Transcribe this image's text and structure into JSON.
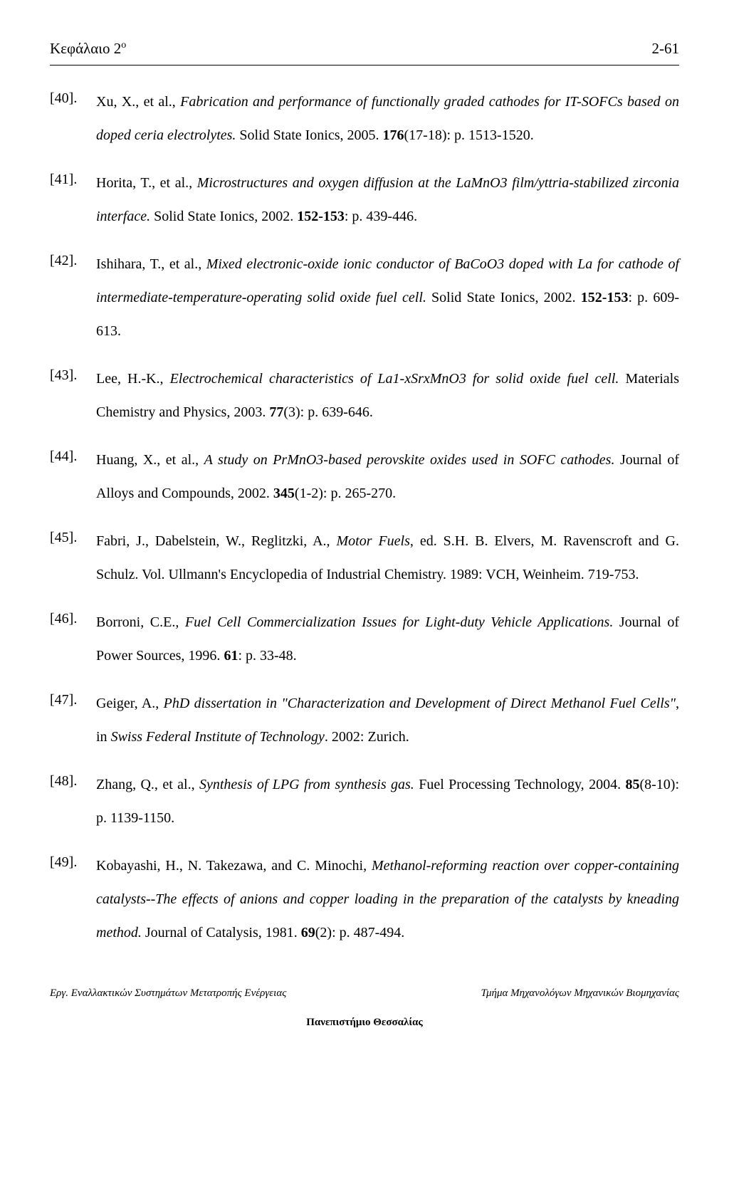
{
  "header": {
    "chapter_label_prefix": "Κεφάλαιο 2",
    "chapter_label_sup": "ο",
    "page_number": "2-61"
  },
  "references": [
    {
      "num": "[40].",
      "parts": [
        {
          "text": "Xu, X., et al., ",
          "style": ""
        },
        {
          "text": "Fabrication and performance of functionally graded cathodes for IT-SOFCs based on doped ceria electrolytes.",
          "style": "italic"
        },
        {
          "text": " Solid State Ionics, 2005. ",
          "style": ""
        },
        {
          "text": "176",
          "style": "bold"
        },
        {
          "text": "(17-18): p. 1513-1520.",
          "style": ""
        }
      ]
    },
    {
      "num": "[41].",
      "parts": [
        {
          "text": "Horita, T., et al., ",
          "style": ""
        },
        {
          "text": "Microstructures and oxygen diffusion at the LaMnO3 film/yttria-stabilized zirconia interface.",
          "style": "italic"
        },
        {
          "text": " Solid State Ionics, 2002. ",
          "style": ""
        },
        {
          "text": "152-153",
          "style": "bold"
        },
        {
          "text": ": p. 439-446.",
          "style": ""
        }
      ]
    },
    {
      "num": "[42].",
      "parts": [
        {
          "text": "Ishihara, T., et al., ",
          "style": ""
        },
        {
          "text": "Mixed electronic-oxide ionic conductor of BaCoO3 doped with La for cathode of intermediate-temperature-operating solid oxide fuel cell.",
          "style": "italic"
        },
        {
          "text": " Solid State Ionics, 2002. ",
          "style": ""
        },
        {
          "text": "152-153",
          "style": "bold"
        },
        {
          "text": ": p. 609-613.",
          "style": ""
        }
      ]
    },
    {
      "num": "[43].",
      "parts": [
        {
          "text": "Lee, H.-K., ",
          "style": ""
        },
        {
          "text": "Electrochemical characteristics of La1-xSrxMnO3 for solid oxide fuel cell.",
          "style": "italic"
        },
        {
          "text": " Materials Chemistry and Physics, 2003. ",
          "style": ""
        },
        {
          "text": "77",
          "style": "bold"
        },
        {
          "text": "(3): p. 639-646.",
          "style": ""
        }
      ]
    },
    {
      "num": "[44].",
      "parts": [
        {
          "text": "Huang, X., et al., ",
          "style": ""
        },
        {
          "text": "A study on PrMnO3-based perovskite oxides used in SOFC cathodes.",
          "style": "italic"
        },
        {
          "text": " Journal of Alloys and Compounds, 2002. ",
          "style": ""
        },
        {
          "text": "345",
          "style": "bold"
        },
        {
          "text": "(1-2): p. 265-270.",
          "style": ""
        }
      ]
    },
    {
      "num": "[45].",
      "parts": [
        {
          "text": "Fabri, J., Dabelstein, W., Reglitzki, A., ",
          "style": ""
        },
        {
          "text": "Motor Fuels",
          "style": "italic"
        },
        {
          "text": ", ed. S.H. B. Elvers, M. Ravenscroft and G. Schulz. Vol. Ullmann's Encyclopedia of Industrial Chemistry. 1989: VCH, Weinheim. 719-753.",
          "style": ""
        }
      ]
    },
    {
      "num": "[46].",
      "parts": [
        {
          "text": "Borroni, C.E., ",
          "style": ""
        },
        {
          "text": "Fuel Cell Commercialization Issues for Light-duty Vehicle Applications.",
          "style": "italic"
        },
        {
          "text": " Journal of Power Sources, 1996. ",
          "style": ""
        },
        {
          "text": "61",
          "style": "bold"
        },
        {
          "text": ": p. 33-48.",
          "style": ""
        }
      ]
    },
    {
      "num": "[47].",
      "parts": [
        {
          "text": "Geiger, A., ",
          "style": ""
        },
        {
          "text": "PhD dissertation in \"Characterization and Development of Direct Methanol Fuel Cells\"",
          "style": "italic"
        },
        {
          "text": ", in ",
          "style": ""
        },
        {
          "text": "Swiss Federal Institute of Technology",
          "style": "italic"
        },
        {
          "text": ". 2002: Zurich.",
          "style": ""
        }
      ]
    },
    {
      "num": "[48].",
      "parts": [
        {
          "text": "Zhang, Q., et al., ",
          "style": ""
        },
        {
          "text": "Synthesis of LPG from synthesis gas.",
          "style": "italic"
        },
        {
          "text": " Fuel Processing Technology, 2004. ",
          "style": ""
        },
        {
          "text": "85",
          "style": "bold"
        },
        {
          "text": "(8-10): p. 1139-1150.",
          "style": ""
        }
      ]
    },
    {
      "num": "[49].",
      "parts": [
        {
          "text": "Kobayashi, H., N. Takezawa, and C. Minochi, ",
          "style": ""
        },
        {
          "text": "Methanol-reforming reaction over copper-containing catalysts--The effects of anions and copper loading in the preparation of the catalysts by kneading method.",
          "style": "italic"
        },
        {
          "text": " Journal of Catalysis, 1981. ",
          "style": ""
        },
        {
          "text": "69",
          "style": "bold"
        },
        {
          "text": "(2): p. 487-494.",
          "style": ""
        }
      ]
    }
  ],
  "footer": {
    "left": "Εργ. Εναλλακτικών Συστημάτων Μετατροπής Ενέργειας",
    "right": "Τμήμα Μηχανολόγων Μηχανικών Βιομηχανίας",
    "center": "Πανεπιστήμιο Θεσσαλίας"
  }
}
